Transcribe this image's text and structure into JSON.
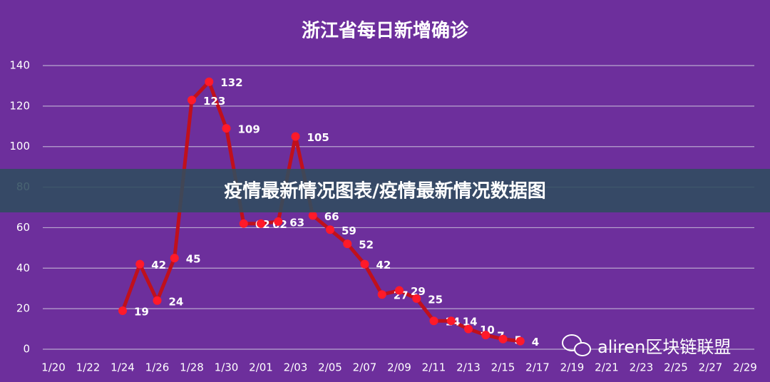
{
  "chart_data": {
    "type": "line",
    "title": "浙江省每日新增确诊",
    "categories": [
      "1/20",
      null,
      "1/22",
      null,
      "1/24",
      null,
      "1/26",
      null,
      "1/28",
      null,
      "1/30",
      null,
      "2/01",
      null,
      "2/03",
      null,
      "2/05",
      null,
      "2/07",
      null,
      "2/09",
      null,
      "2/11",
      null,
      "2/13",
      null,
      "2/15",
      null,
      "2/17",
      null,
      "2/19",
      null,
      "2/21",
      null,
      "2/23",
      null,
      "2/25",
      null,
      "2/27",
      null,
      "2/29"
    ],
    "values": [
      null,
      null,
      null,
      null,
      19,
      42,
      24,
      45,
      123,
      132,
      109,
      62,
      62,
      63,
      105,
      66,
      59,
      52,
      42,
      27,
      29,
      25,
      14,
      14,
      10,
      7,
      5,
      4,
      null,
      null,
      null,
      null,
      null,
      null,
      null,
      null,
      null,
      null,
      null,
      null,
      null
    ],
    "color": "#c0101c",
    "marker_color": "#ff1a2a",
    "ylim": [
      0,
      140
    ],
    "yticks": [
      0,
      20,
      40,
      60,
      80,
      100,
      120,
      140
    ],
    "grid": true
  },
  "banner": "疫情最新情况图表/疫情最新情况数据图",
  "watermark": "aliren区块链联盟"
}
